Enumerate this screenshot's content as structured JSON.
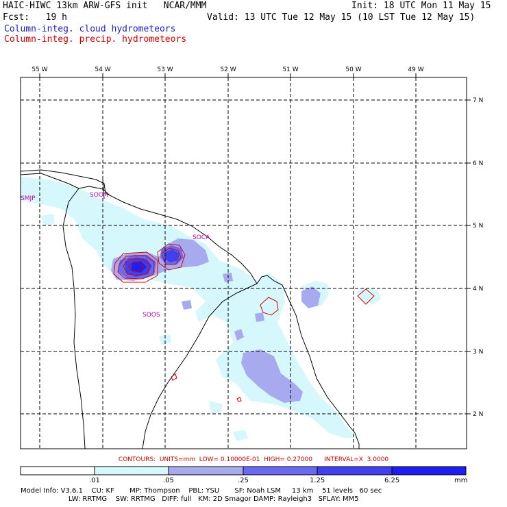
{
  "header": {
    "title": "HAIC-HIWC 13km ARW-GFS init   NCAR/MMM",
    "init": "Init: 18 UTC Mon 11 May 15",
    "fcst": "Fcst:   19 h",
    "valid": "Valid: 13 UTC Tue 12 May 15 (10 LST Tue 12 May 15)",
    "legend_cloud": "Column-integ. cloud hydrometeors",
    "legend_precip": "Column-integ. precip. hydrometeors"
  },
  "colors": {
    "cloud_text": "#1c1cc8",
    "precip_text": "#d40000",
    "shade_1": "#d6f8fc",
    "shade_2": "#a8aaf0",
    "shade_3": "#6a6af0",
    "shade_4": "#4040ee",
    "shade_5": "#1e1ef0",
    "contour": "#d40000",
    "station": "#c000c0"
  },
  "map": {
    "lon_labels": [
      "55 W",
      "54 W",
      "53 W",
      "52 W",
      "51 W",
      "50 W",
      "49 W"
    ],
    "lat_labels": [
      "7 N",
      "6 N",
      "5 N",
      "4 N",
      "3 N",
      "2 N"
    ],
    "stations": [
      "SMJP",
      "SOCM",
      "SOCA",
      "SOOS"
    ]
  },
  "contour_info": "CONTOURS:  UNITS=mm  LOW= 0.10000E-01  HIGH= 0.27000      INTERVAL=X  3.0000",
  "colorbar": {
    "levels": [
      ".01",
      ".05",
      ".25",
      "1.25",
      "6.25"
    ],
    "units": "mm"
  },
  "model_info": {
    "line1": "Model Info: V3.6.1    CU: KF       MP: Thompson    PBL: YSU       SF: Noah LSM     13 km    51 levels   60 sec",
    "line2": "                      LW: RRTMG    SW: RRTMG   DIFF: full   KM: 2D Smagor DAMP: Rayleigh3   SFLAY: MM5"
  }
}
